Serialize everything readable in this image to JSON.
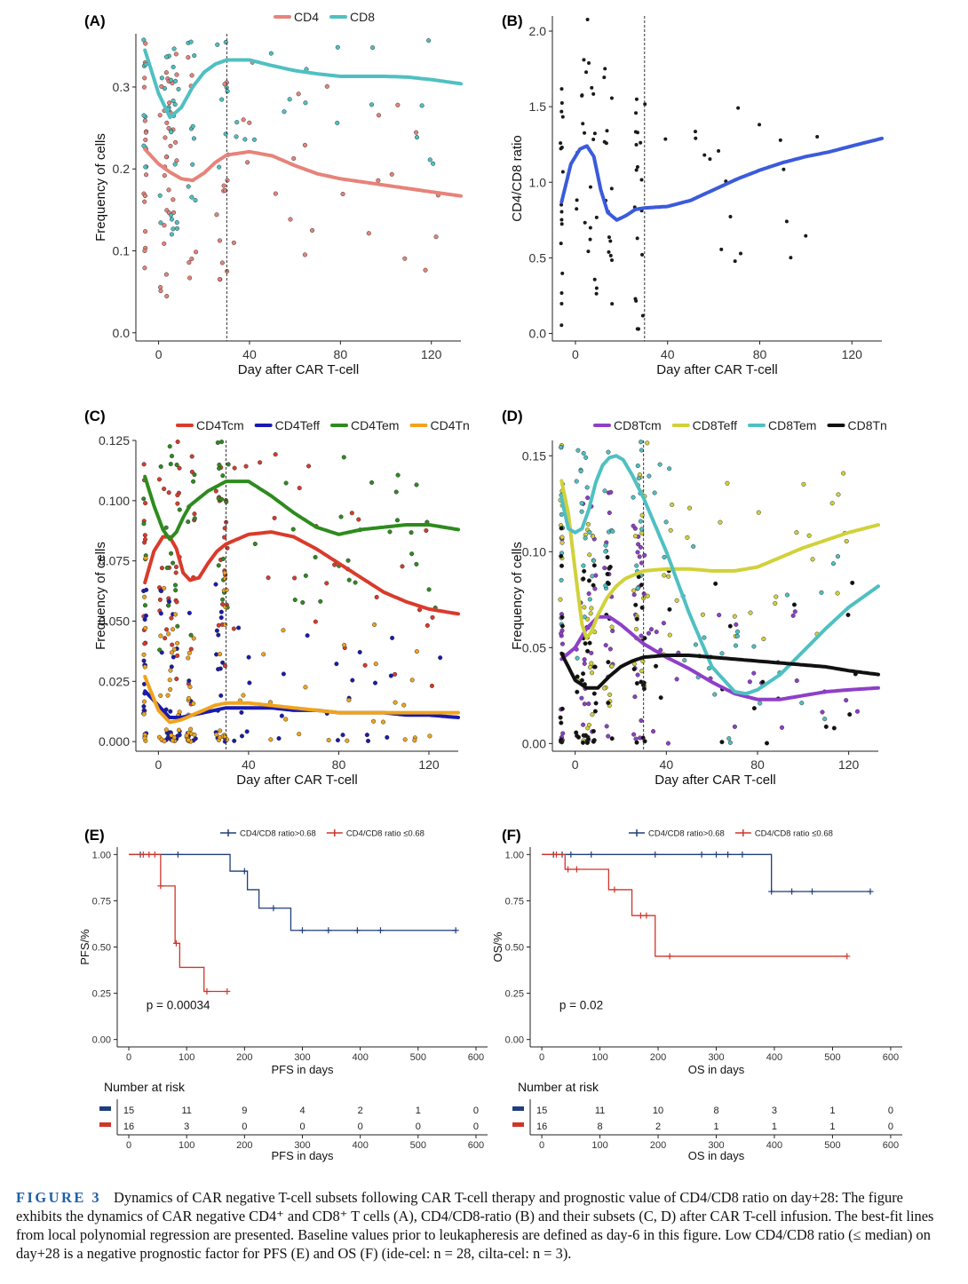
{
  "figure": {
    "caption_label": "FIGURE 3",
    "caption_text": "Dynamics of CAR negative T-cell subsets following CAR T-cell therapy and prognostic value of CD4/CD8 ratio on day+28: The figure exhibits the dynamics of CAR negative CD4⁺ and CD8⁺ T cells (A), CD4/CD8-ratio (B) and their subsets (C, D) after CAR T-cell infusion. The best-fit lines from local polynomial regression are presented. Baseline values prior to leukapheresis are defined as day-6 in this figure. Low CD4/CD8 ratio (≤ median) on day+28 is a negative prognostic factor for PFS (E) and OS (F) (ide-cel: n = 28, cilta-cel: n = 3)."
  },
  "chart_data": [
    {
      "panel": "(A)",
      "type": "scatter",
      "xlabel": "Day after CAR T-cell",
      "ylabel": "Frequency of cells",
      "xlim": [
        -10,
        133
      ],
      "ylim": [
        -0.01,
        0.365
      ],
      "xticks": [
        0,
        40,
        80,
        120
      ],
      "yticks": [
        0.0,
        0.1,
        0.2,
        0.3
      ],
      "ytick_labels": [
        "0.0",
        "0.1",
        "0.2",
        "0.3"
      ],
      "vline": 30,
      "legend_position": "top",
      "series": [
        {
          "name": "CD4",
          "color": "#e7837a",
          "fit_x": [
            -6,
            0,
            5,
            10,
            15,
            20,
            25,
            30,
            40,
            50,
            60,
            70,
            80,
            90,
            100,
            110,
            120,
            133
          ],
          "fit_y": [
            0.224,
            0.206,
            0.196,
            0.188,
            0.186,
            0.195,
            0.208,
            0.217,
            0.221,
            0.216,
            0.204,
            0.194,
            0.188,
            0.184,
            0.18,
            0.176,
            0.172,
            0.167
          ]
        },
        {
          "name": "CD8",
          "color": "#4fc0c2",
          "fit_x": [
            -6,
            0,
            5,
            10,
            15,
            20,
            25,
            30,
            40,
            50,
            60,
            70,
            80,
            90,
            100,
            110,
            120,
            133
          ],
          "fit_y": [
            0.345,
            0.292,
            0.263,
            0.275,
            0.3,
            0.318,
            0.328,
            0.333,
            0.333,
            0.326,
            0.32,
            0.316,
            0.313,
            0.313,
            0.313,
            0.312,
            0.309,
            0.304
          ]
        }
      ]
    },
    {
      "panel": "(B)",
      "type": "scatter",
      "xlabel": "Day after CAR T-cell",
      "ylabel": "CD4/CD8 ratio",
      "xlim": [
        -10,
        133
      ],
      "ylim": [
        -0.05,
        2.1
      ],
      "xticks": [
        0,
        40,
        80,
        120
      ],
      "yticks": [
        0.0,
        0.5,
        1.0,
        1.5,
        2.0
      ],
      "ytick_labels": [
        "0.0",
        "0.5",
        "1.0",
        "1.5",
        "2.0"
      ],
      "vline": 30,
      "series": [
        {
          "name": "",
          "color": "#3b5bdb",
          "fit_x": [
            -6,
            -2,
            2,
            5,
            8,
            11,
            14,
            18,
            22,
            26,
            30,
            40,
            50,
            60,
            70,
            80,
            90,
            100,
            110,
            120,
            133
          ],
          "fit_y": [
            0.87,
            1.12,
            1.22,
            1.24,
            1.17,
            0.95,
            0.8,
            0.75,
            0.78,
            0.82,
            0.83,
            0.84,
            0.88,
            0.95,
            1.02,
            1.08,
            1.13,
            1.17,
            1.2,
            1.24,
            1.29
          ]
        }
      ]
    },
    {
      "panel": "(C)",
      "type": "scatter",
      "xlabel": "Day after CAR T-cell",
      "ylabel": "Frequency of cells",
      "xlim": [
        -10,
        133
      ],
      "ylim": [
        -0.004,
        0.125
      ],
      "xticks": [
        0,
        40,
        80,
        120
      ],
      "yticks": [
        0.0,
        0.025,
        0.05,
        0.075,
        0.1,
        0.125
      ],
      "ytick_labels": [
        "0.000",
        "0.025",
        "0.050",
        "0.075",
        "0.100",
        "0.125"
      ],
      "vline": 30,
      "legend_position": "top",
      "series": [
        {
          "name": "CD4Tcm",
          "color": "#d93b2b",
          "fit_x": [
            -6,
            -2,
            2,
            5,
            8,
            11,
            14,
            18,
            22,
            26,
            30,
            40,
            50,
            60,
            70,
            80,
            90,
            100,
            110,
            120,
            133
          ],
          "fit_y": [
            0.066,
            0.079,
            0.085,
            0.085,
            0.08,
            0.07,
            0.067,
            0.068,
            0.074,
            0.079,
            0.082,
            0.086,
            0.087,
            0.085,
            0.08,
            0.074,
            0.068,
            0.062,
            0.058,
            0.055,
            0.053
          ]
        },
        {
          "name": "CD4Teff",
          "color": "#1a1ab0",
          "fit_x": [
            -6,
            0,
            5,
            10,
            15,
            20,
            25,
            30,
            40,
            50,
            60,
            70,
            80,
            90,
            100,
            110,
            120,
            133
          ],
          "fit_y": [
            0.021,
            0.015,
            0.01,
            0.01,
            0.011,
            0.012,
            0.013,
            0.014,
            0.014,
            0.014,
            0.013,
            0.013,
            0.012,
            0.012,
            0.012,
            0.011,
            0.011,
            0.01
          ]
        },
        {
          "name": "CD4Tem",
          "color": "#2e8b1e",
          "fit_x": [
            -6,
            -2,
            2,
            5,
            8,
            11,
            14,
            18,
            22,
            26,
            30,
            40,
            50,
            60,
            70,
            80,
            90,
            100,
            110,
            120,
            133
          ],
          "fit_y": [
            0.11,
            0.098,
            0.088,
            0.084,
            0.087,
            0.093,
            0.098,
            0.101,
            0.104,
            0.106,
            0.108,
            0.108,
            0.102,
            0.095,
            0.089,
            0.086,
            0.088,
            0.089,
            0.09,
            0.09,
            0.088
          ]
        },
        {
          "name": "CD4Tn",
          "color": "#f0a31c",
          "fit_x": [
            -6,
            0,
            5,
            10,
            15,
            20,
            25,
            30,
            40,
            50,
            60,
            70,
            80,
            90,
            100,
            110,
            120,
            133
          ],
          "fit_y": [
            0.027,
            0.013,
            0.008,
            0.009,
            0.011,
            0.013,
            0.015,
            0.016,
            0.016,
            0.015,
            0.014,
            0.013,
            0.012,
            0.012,
            0.012,
            0.012,
            0.012,
            0.012
          ]
        }
      ]
    },
    {
      "panel": "(D)",
      "type": "scatter",
      "xlabel": "Day after CAR T-cell",
      "ylabel": "Frequency of cells",
      "xlim": [
        -10,
        133
      ],
      "ylim": [
        -0.004,
        0.158
      ],
      "xticks": [
        0,
        40,
        80,
        120
      ],
      "yticks": [
        0.0,
        0.05,
        0.1,
        0.15
      ],
      "ytick_labels": [
        "0.00",
        "0.05",
        "0.10",
        "0.15"
      ],
      "vline": 30,
      "legend_position": "top",
      "series": [
        {
          "name": "CD8Tcm",
          "color": "#8e3fc8",
          "fit_x": [
            -6,
            0,
            5,
            10,
            15,
            20,
            25,
            30,
            40,
            50,
            60,
            70,
            80,
            90,
            100,
            110,
            120,
            133
          ],
          "fit_y": [
            0.044,
            0.05,
            0.06,
            0.066,
            0.066,
            0.062,
            0.057,
            0.052,
            0.045,
            0.039,
            0.032,
            0.026,
            0.023,
            0.023,
            0.025,
            0.027,
            0.028,
            0.029
          ]
        },
        {
          "name": "CD8Teff",
          "color": "#d1d13a",
          "fit_x": [
            -6,
            -3,
            0,
            3,
            5,
            7,
            10,
            14,
            18,
            22,
            26,
            30,
            40,
            50,
            60,
            70,
            80,
            90,
            100,
            110,
            120,
            133
          ],
          "fit_y": [
            0.137,
            0.12,
            0.09,
            0.062,
            0.055,
            0.058,
            0.067,
            0.076,
            0.082,
            0.086,
            0.088,
            0.09,
            0.091,
            0.091,
            0.09,
            0.09,
            0.092,
            0.097,
            0.102,
            0.106,
            0.11,
            0.114
          ]
        },
        {
          "name": "CD8Tem",
          "color": "#4fc0c2",
          "fit_x": [
            -6,
            -3,
            0,
            3,
            6,
            9,
            12,
            15,
            18,
            21,
            25,
            30,
            40,
            50,
            60,
            70,
            75,
            80,
            90,
            100,
            110,
            120,
            133
          ],
          "fit_y": [
            0.128,
            0.112,
            0.11,
            0.112,
            0.122,
            0.136,
            0.145,
            0.149,
            0.15,
            0.148,
            0.14,
            0.128,
            0.1,
            0.068,
            0.04,
            0.027,
            0.026,
            0.028,
            0.036,
            0.048,
            0.06,
            0.071,
            0.082
          ]
        },
        {
          "name": "CD8Tn",
          "color": "#111111",
          "fit_x": [
            -6,
            0,
            5,
            10,
            15,
            20,
            25,
            30,
            40,
            50,
            60,
            70,
            80,
            90,
            100,
            110,
            120,
            133
          ],
          "fit_y": [
            0.047,
            0.033,
            0.029,
            0.029,
            0.035,
            0.04,
            0.043,
            0.045,
            0.046,
            0.046,
            0.045,
            0.044,
            0.043,
            0.042,
            0.041,
            0.04,
            0.038,
            0.036
          ]
        }
      ]
    },
    {
      "panel": "(E)",
      "type": "line",
      "subtype": "kaplan-meier",
      "xlabel": "PFS in days",
      "ylabel": "PFS/%",
      "xlim": [
        -20,
        620
      ],
      "ylim": [
        -0.04,
        1.04
      ],
      "xticks": [
        0,
        100,
        200,
        300,
        400,
        500,
        600
      ],
      "yticks": [
        0.0,
        0.25,
        0.5,
        0.75,
        1.0
      ],
      "ytick_labels": [
        "0.00",
        "0.25",
        "0.50",
        "0.75",
        "1.00"
      ],
      "annotation": "p = 0.00034",
      "series": [
        {
          "name": "CD4/CD8 ratio>0.68",
          "color": "#1f3f7a",
          "steps": [
            [
              0,
              1.0
            ],
            [
              175,
              0.91
            ],
            [
              205,
              0.81
            ],
            [
              225,
              0.71
            ],
            [
              280,
              0.59
            ],
            [
              565,
              0.59
            ]
          ],
          "censored": [
            [
              20,
              1.0
            ],
            [
              85,
              1.0
            ],
            [
              200,
              0.91
            ],
            [
              250,
              0.71
            ],
            [
              300,
              0.59
            ],
            [
              345,
              0.59
            ],
            [
              395,
              0.59
            ],
            [
              435,
              0.59
            ],
            [
              565,
              0.59
            ]
          ]
        },
        {
          "name": "CD4/CD8 ratio ≤0.68",
          "color": "#d0352a",
          "steps": [
            [
              0,
              1.0
            ],
            [
              55,
              0.83
            ],
            [
              80,
              0.52
            ],
            [
              88,
              0.39
            ],
            [
              130,
              0.26
            ],
            [
              170,
              0.26
            ]
          ],
          "censored": [
            [
              25,
              1.0
            ],
            [
              35,
              1.0
            ],
            [
              45,
              1.0
            ],
            [
              55,
              0.83
            ],
            [
              82,
              0.52
            ],
            [
              135,
              0.26
            ],
            [
              170,
              0.26
            ]
          ]
        }
      ],
      "risk_table": {
        "title": "Number at risk",
        "times": [
          "0",
          "100",
          "200",
          "300",
          "400",
          "500",
          "600"
        ],
        "rows": [
          [
            "15",
            "11",
            "9",
            "4",
            "2",
            "1",
            "0"
          ],
          [
            "16",
            "3",
            "0",
            "0",
            "0",
            "0",
            "0"
          ]
        ]
      }
    },
    {
      "panel": "(F)",
      "type": "line",
      "subtype": "kaplan-meier",
      "xlabel": "OS in days",
      "ylabel": "OS/%",
      "xlim": [
        -20,
        620
      ],
      "ylim": [
        -0.04,
        1.04
      ],
      "xticks": [
        0,
        100,
        200,
        300,
        400,
        500,
        600
      ],
      "yticks": [
        0.0,
        0.25,
        0.5,
        0.75,
        1.0
      ],
      "ytick_labels": [
        "0.00",
        "0.25",
        "0.50",
        "0.75",
        "1.00"
      ],
      "annotation": "p = 0.02",
      "series": [
        {
          "name": "CD4/CD8 ratio>0.68",
          "color": "#1f3f7a",
          "steps": [
            [
              0,
              1.0
            ],
            [
              395,
              0.8
            ],
            [
              565,
              0.8
            ]
          ],
          "censored": [
            [
              20,
              1.0
            ],
            [
              35,
              1.0
            ],
            [
              50,
              1.0
            ],
            [
              85,
              1.0
            ],
            [
              195,
              1.0
            ],
            [
              275,
              1.0
            ],
            [
              300,
              1.0
            ],
            [
              320,
              1.0
            ],
            [
              345,
              1.0
            ],
            [
              395,
              0.8
            ],
            [
              430,
              0.8
            ],
            [
              465,
              0.8
            ],
            [
              565,
              0.8
            ]
          ]
        },
        {
          "name": "CD4/CD8 ratio ≤0.68",
          "color": "#d0352a",
          "steps": [
            [
              0,
              1.0
            ],
            [
              40,
              0.92
            ],
            [
              115,
              0.81
            ],
            [
              155,
              0.67
            ],
            [
              195,
              0.45
            ],
            [
              525,
              0.45
            ]
          ],
          "censored": [
            [
              25,
              1.0
            ],
            [
              45,
              0.92
            ],
            [
              60,
              0.92
            ],
            [
              125,
              0.81
            ],
            [
              170,
              0.67
            ],
            [
              180,
              0.67
            ],
            [
              220,
              0.45
            ],
            [
              525,
              0.45
            ]
          ]
        }
      ],
      "risk_table": {
        "title": "Number at risk",
        "times": [
          "0",
          "100",
          "200",
          "300",
          "400",
          "500",
          "600"
        ],
        "rows": [
          [
            "15",
            "11",
            "10",
            "8",
            "3",
            "1",
            "0"
          ],
          [
            "16",
            "8",
            "2",
            "1",
            "1",
            "1",
            "0"
          ]
        ]
      }
    }
  ]
}
